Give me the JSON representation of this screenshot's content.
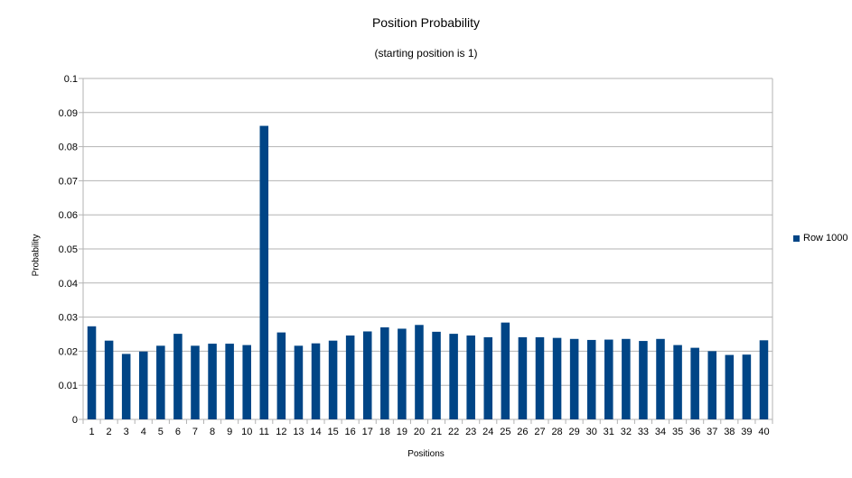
{
  "chart_data": {
    "type": "bar",
    "title": "Position Probability",
    "subtitle": "(starting position is 1)",
    "xlabel": "Positions",
    "ylabel": "Probability",
    "ylim": [
      0,
      0.1
    ],
    "yticks": [
      "0",
      "0.01",
      "0.02",
      "0.03",
      "0.04",
      "0.05",
      "0.06",
      "0.07",
      "0.08",
      "0.09",
      "0.1"
    ],
    "categories": [
      "1",
      "2",
      "3",
      "4",
      "5",
      "6",
      "7",
      "8",
      "9",
      "10",
      "11",
      "12",
      "13",
      "14",
      "15",
      "16",
      "17",
      "18",
      "19",
      "20",
      "21",
      "22",
      "23",
      "24",
      "25",
      "26",
      "27",
      "28",
      "29",
      "30",
      "31",
      "32",
      "33",
      "34",
      "35",
      "36",
      "37",
      "38",
      "39",
      "40"
    ],
    "series": [
      {
        "name": "Row 1000",
        "color": "#004586",
        "values": [
          0.0273,
          0.0231,
          0.0192,
          0.0199,
          0.0216,
          0.0251,
          0.0216,
          0.0222,
          0.0222,
          0.0218,
          0.0861,
          0.0255,
          0.0216,
          0.0223,
          0.0231,
          0.0246,
          0.0258,
          0.027,
          0.0266,
          0.0277,
          0.0257,
          0.0251,
          0.0246,
          0.0241,
          0.0284,
          0.0241,
          0.0241,
          0.0239,
          0.0236,
          0.0233,
          0.0234,
          0.0236,
          0.023,
          0.0236,
          0.0218,
          0.021,
          0.02,
          0.0189,
          0.019,
          0.0232
        ]
      }
    ],
    "grid": true,
    "legend_position": "right"
  }
}
